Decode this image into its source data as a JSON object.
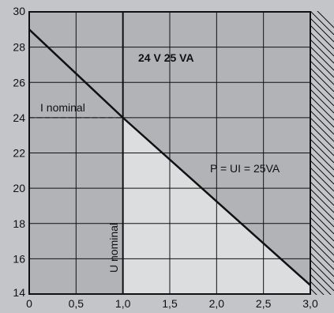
{
  "chart_data": {
    "type": "line",
    "title": "",
    "xlabel": "",
    "ylabel": "",
    "xlim": [
      0,
      3.0
    ],
    "ylim": [
      14,
      30
    ],
    "x_ticks": [
      "0",
      "0,5",
      "1,0",
      "1,5",
      "2,0",
      "2,5",
      "3,0"
    ],
    "y_ticks": [
      "14",
      "16",
      "18",
      "20",
      "22",
      "24",
      "26",
      "28",
      "30"
    ],
    "grid": true,
    "series": [
      {
        "x": [
          0,
          1.0,
          3.0
        ],
        "y": [
          29,
          24,
          14.5
        ]
      }
    ],
    "annotations": {
      "rating": "24 V 25 VA",
      "power_formula": "P = UI = 25VA",
      "i_nominal": "I nominal",
      "u_nominal": "U nominal"
    },
    "colors": {
      "background": "#c3c5c8",
      "plot_area": "#b1b3b6",
      "operating_region": "#dcdddf",
      "line": "#111111"
    }
  }
}
